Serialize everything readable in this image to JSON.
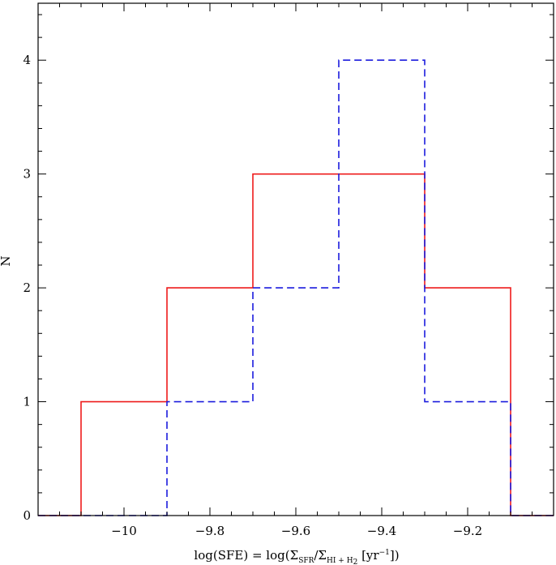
{
  "chart_data": {
    "type": "histogram",
    "xlim": [
      -10.2,
      -9.0
    ],
    "ylim": [
      0,
      4.5
    ],
    "x_ticks": [
      -10,
      -9.8,
      -9.6,
      -9.4,
      -9.2
    ],
    "x_tick_labels": [
      "−10",
      "−9.8",
      "−9.6",
      "−9.4",
      "−9.2"
    ],
    "y_ticks": [
      0,
      1,
      2,
      3,
      4
    ],
    "y_tick_labels": [
      "0",
      "1",
      "2",
      "3",
      "4"
    ],
    "ylabel": "N",
    "xlabel": {
      "pre": "log(SFE) = log(Σ",
      "sub1": "SFR",
      "mid": "/Σ",
      "sub2": "HI + H",
      "sub2b": "2",
      "post1": " [yr",
      "sup": "−1",
      "post2": "])"
    },
    "bin_edges": [
      -10.3,
      -10.1,
      -9.9,
      -9.7,
      -9.5,
      -9.3,
      -9.1,
      -8.9
    ],
    "series": [
      {
        "color": "#ee1c1c",
        "style": "solid",
        "counts": [
          0,
          1,
          2,
          3,
          3,
          2,
          0
        ]
      },
      {
        "color": "#1c1cdd",
        "style": "dashed",
        "counts": [
          0,
          0,
          1,
          2,
          4,
          1,
          0
        ]
      }
    ],
    "grid": false,
    "legend": "none"
  }
}
